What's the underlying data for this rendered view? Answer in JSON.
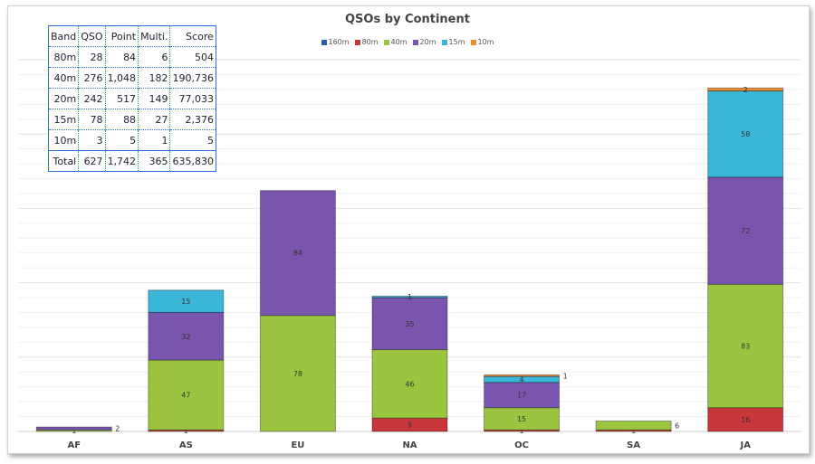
{
  "chart_data": {
    "type": "bar",
    "stacked": true,
    "title": "QSOs by Continent",
    "categories": [
      "AF",
      "AS",
      "EU",
      "NA",
      "OC",
      "SA",
      "JA"
    ],
    "series": [
      {
        "name": "160m",
        "color": "#2a5caa",
        "values": [
          0,
          0,
          0,
          0,
          0,
          0,
          0
        ]
      },
      {
        "name": "80m",
        "color": "#c8373a",
        "values": [
          0,
          1,
          0,
          9,
          1,
          1,
          16
        ]
      },
      {
        "name": "40m",
        "color": "#9bc541",
        "values": [
          1,
          47,
          78,
          46,
          15,
          6,
          83
        ]
      },
      {
        "name": "20m",
        "color": "#7a55ad",
        "values": [
          2,
          32,
          84,
          35,
          17,
          0,
          72
        ]
      },
      {
        "name": "15m",
        "color": "#3ab6d8",
        "values": [
          0,
          15,
          0,
          1,
          4,
          0,
          58
        ]
      },
      {
        "name": "10m",
        "color": "#e98c2e",
        "values": [
          0,
          0,
          0,
          0,
          1,
          0,
          2
        ]
      }
    ],
    "ylim": [
      0,
      250
    ],
    "grid": true,
    "legend": "top"
  },
  "table": {
    "headers": [
      "Band",
      "QSO",
      "Point",
      "Multi.",
      "Score"
    ],
    "rows": [
      [
        "80m",
        "28",
        "84",
        "6",
        "504"
      ],
      [
        "40m",
        "276",
        "1,048",
        "182",
        "190,736"
      ],
      [
        "20m",
        "242",
        "517",
        "149",
        "77,033"
      ],
      [
        "15m",
        "78",
        "88",
        "27",
        "2,376"
      ],
      [
        "10m",
        "3",
        "5",
        "1",
        "5"
      ],
      [
        "Total",
        "627",
        "1,742",
        "365",
        "635,830"
      ]
    ]
  }
}
